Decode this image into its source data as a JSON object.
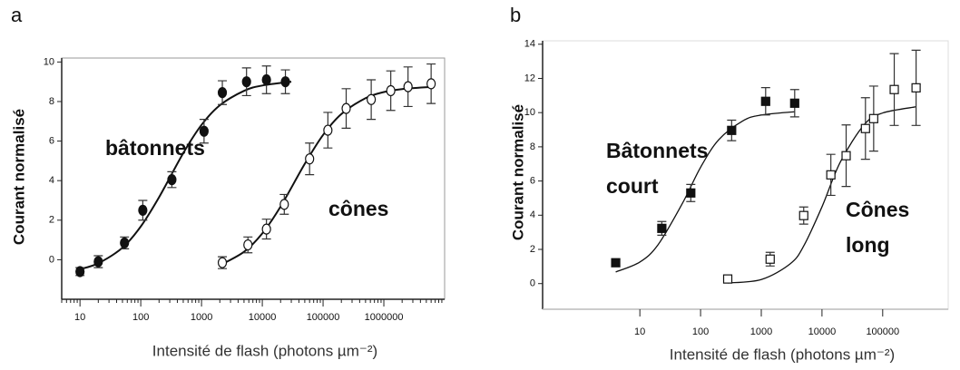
{
  "chart_data": [
    {
      "type": "scatter",
      "panel": "a",
      "xscale": "log",
      "minor_ticks": true,
      "xlabel": "Intensité de flash (photons µm⁻²)",
      "ylabel": "Courant normalisé",
      "xlim": [
        5,
        10000000
      ],
      "ylim": [
        -2,
        10.2
      ],
      "xticks": [
        10,
        100,
        1000,
        10000,
        100000,
        1000000
      ],
      "yticks": [
        0,
        2,
        4,
        6,
        8,
        10
      ],
      "series": [
        {
          "name": "bâtonnets",
          "marker": "circle",
          "filled": true,
          "color": "#111111",
          "x": [
            10,
            20,
            54,
            108,
            325,
            1100,
            2200,
            5500,
            11700,
            24000
          ],
          "values": [
            -0.6,
            -0.1,
            0.85,
            2.5,
            4.05,
            6.5,
            8.45,
            9.0,
            9.1,
            9.0
          ],
          "errors": [
            0.2,
            0.3,
            0.3,
            0.5,
            0.4,
            0.6,
            0.6,
            0.7,
            0.7,
            0.6
          ],
          "fit": {
            "x": [
              10,
              20,
              50,
              100,
              200,
              500,
              1000,
              2000,
              5000,
              10000,
              30000
            ],
            "values": [
              -0.48,
              -0.18,
              0.61,
              1.68,
              3.16,
              5.39,
              6.82,
              7.81,
              8.54,
              8.81,
              9.0
            ]
          }
        },
        {
          "name": "cônes",
          "marker": "circle",
          "filled": false,
          "color": "#111111",
          "x": [
            2200,
            5800,
            11700,
            23000,
            60000,
            120000,
            240000,
            620000,
            1300000,
            2500000,
            6000000
          ],
          "values": [
            -0.15,
            0.75,
            1.55,
            2.8,
            5.1,
            6.55,
            7.65,
            8.1,
            8.55,
            8.75,
            8.9
          ],
          "errors": [
            0.3,
            0.4,
            0.5,
            0.5,
            0.8,
            0.9,
            1.0,
            1.0,
            1.0,
            1.0,
            1.0
          ],
          "fit": {
            "x": [
              2000,
              5000,
              10000,
              20000,
              50000,
              100000,
              200000,
              500000,
              1000000,
              2000000,
              6000000
            ],
            "values": [
              -0.28,
              0.4,
              1.33,
              2.69,
              4.85,
              6.31,
              7.37,
              8.17,
              8.48,
              8.63,
              8.74
            ]
          }
        }
      ]
    },
    {
      "type": "scatter",
      "panel": "b",
      "xscale": "log",
      "minor_ticks": false,
      "xlabel": "Intensité de flash (photons µm⁻²)",
      "ylabel": "Courant normalisé",
      "xlim": [
        0.25,
        1200000
      ],
      "ylim": [
        -1.5,
        14.2
      ],
      "xticks": [
        10,
        100,
        1000,
        10000,
        100000
      ],
      "yticks": [
        0,
        2,
        4,
        6,
        8,
        10,
        12,
        14
      ],
      "series": [
        {
          "name": "Bâtonnets court",
          "marker": "square",
          "filled": true,
          "color": "#111111",
          "x": [
            4,
            23,
            69,
            325,
            1180,
            3550
          ],
          "values": [
            1.22,
            3.23,
            5.3,
            8.96,
            10.66,
            10.55
          ],
          "errors": [
            0.2,
            0.4,
            0.5,
            0.6,
            0.8,
            0.8
          ],
          "fit": {
            "x": [
              4,
              10,
              20,
              50,
              100,
              200,
              500,
              1000,
              3500
            ],
            "values": [
              0.68,
              1.26,
              2.28,
              4.68,
              6.8,
              8.42,
              9.52,
              9.86,
              10.05
            ]
          }
        },
        {
          "name": "Cônes long",
          "marker": "square",
          "filled": false,
          "color": "#111111",
          "x": [
            280,
            1400,
            5000,
            14000,
            25000,
            52000,
            71000,
            155000,
            355000
          ],
          "values": [
            0.27,
            1.43,
            3.98,
            6.36,
            7.48,
            9.07,
            9.65,
            11.35,
            11.45
          ],
          "errors": [
            0.15,
            0.4,
            0.5,
            1.2,
            1.8,
            1.8,
            1.9,
            2.1,
            2.2
          ],
          "fit": {
            "x": [
              280,
              1000,
              3000,
              5000,
              10000,
              20000,
              50000,
              100000,
              355000
            ],
            "values": [
              0.04,
              0.24,
              1.16,
              2.2,
              4.49,
              7.1,
              9.31,
              9.98,
              10.34
            ]
          }
        }
      ]
    }
  ]
}
